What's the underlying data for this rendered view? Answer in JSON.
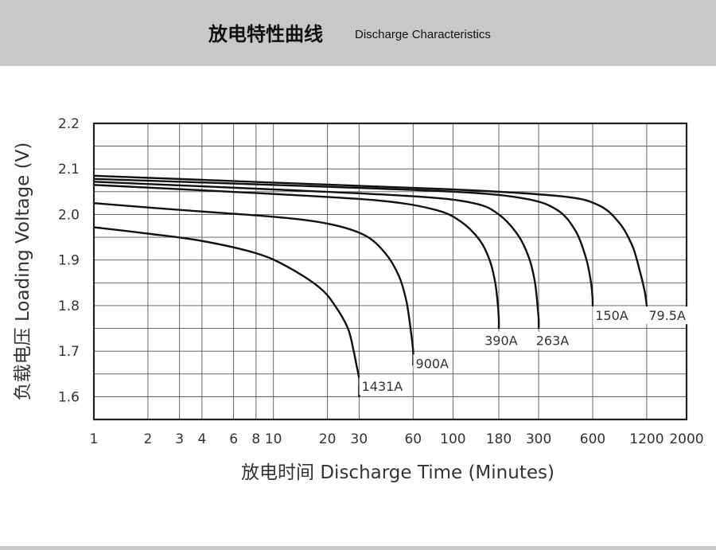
{
  "header": {
    "title_cn": "放电特性曲线",
    "title_en": "Discharge Characteristics"
  },
  "chart_data": {
    "type": "line",
    "xlabel": "放电时间 Discharge Time (Minutes)",
    "ylabel": "负载电压 Loading Voltage (V)",
    "x_scale": "log",
    "xlim": [
      1,
      2000
    ],
    "ylim": [
      1.55,
      2.2
    ],
    "grid": true,
    "x_ticks": [
      1,
      2,
      3,
      4,
      6,
      8,
      10,
      20,
      30,
      60,
      100,
      180,
      300,
      600,
      1200,
      2000
    ],
    "x_tick_labels": [
      "1",
      "2",
      "3",
      "4",
      "6",
      "8",
      "10",
      "20",
      "30",
      "60",
      "100",
      "180",
      "300",
      "600",
      "1200",
      "2000"
    ],
    "y_ticks": [
      1.6,
      1.7,
      1.8,
      1.9,
      2.0,
      2.1,
      2.2
    ],
    "y_tick_labels": [
      "1.6",
      "1.7",
      "1.8",
      "1.9",
      "2.0",
      "2.1",
      "2.2"
    ],
    "series": [
      {
        "name": "1431A",
        "x": [
          1,
          2,
          4,
          8,
          12,
          18,
          22,
          26,
          28,
          29,
          30,
          30,
          30
        ],
        "y": [
          1.972,
          1.958,
          1.942,
          1.915,
          1.885,
          1.84,
          1.8,
          1.75,
          1.7,
          1.67,
          1.64,
          1.62,
          1.6
        ]
      },
      {
        "name": "900A",
        "x": [
          1,
          3,
          10,
          20,
          32,
          42,
          50,
          55,
          58,
          60,
          60
        ],
        "y": [
          2.025,
          2.01,
          1.995,
          1.98,
          1.955,
          1.915,
          1.865,
          1.81,
          1.75,
          1.7,
          1.67
        ]
      },
      {
        "name": "390A",
        "x": [
          1,
          10,
          40,
          80,
          110,
          140,
          160,
          172,
          178,
          180,
          180
        ],
        "y": [
          2.065,
          2.045,
          2.03,
          2.01,
          1.985,
          1.945,
          1.9,
          1.85,
          1.8,
          1.77,
          1.75
        ]
      },
      {
        "name": "263A",
        "x": [
          1,
          10,
          60,
          130,
          180,
          230,
          265,
          285,
          295,
          300,
          300
        ],
        "y": [
          2.072,
          2.055,
          2.04,
          2.025,
          2.0,
          1.955,
          1.905,
          1.855,
          1.805,
          1.77,
          1.75
        ]
      },
      {
        "name": "150A",
        "x": [
          1,
          10,
          100,
          250,
          380,
          480,
          550,
          585,
          598,
          600
        ],
        "y": [
          2.078,
          2.065,
          2.05,
          2.035,
          2.01,
          1.965,
          1.905,
          1.855,
          1.82,
          1.8
        ]
      },
      {
        "name": "79.5A",
        "x": [
          1,
          10,
          100,
          400,
          650,
          850,
          1000,
          1100,
          1170,
          1200
        ],
        "y": [
          2.085,
          2.07,
          2.055,
          2.04,
          2.02,
          1.98,
          1.93,
          1.875,
          1.83,
          1.8
        ]
      }
    ],
    "annotations": [
      {
        "text": "1431A",
        "x": 31,
        "y": 1.62
      },
      {
        "text": "900A",
        "x": 62,
        "y": 1.67
      },
      {
        "text": "390A",
        "x": 150,
        "y": 1.72
      },
      {
        "text": "263A",
        "x": 290,
        "y": 1.72
      },
      {
        "text": "150A",
        "x": 620,
        "y": 1.775
      },
      {
        "text": "79.5A",
        "x": 1230,
        "y": 1.775
      }
    ]
  }
}
